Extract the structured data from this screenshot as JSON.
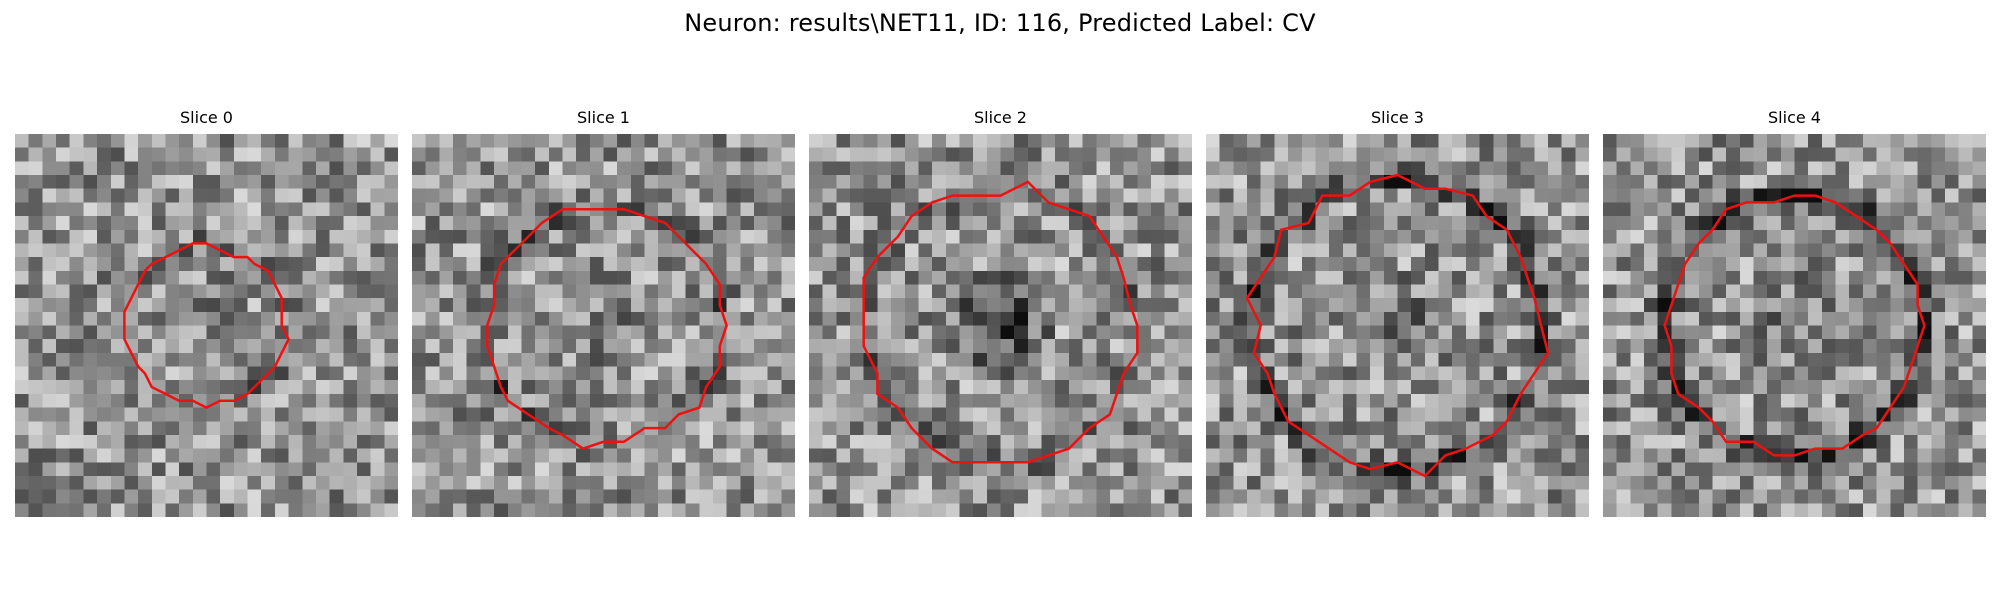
{
  "figure": {
    "title": "Neuron: results\\NET11, ID: 116, Predicted Label: CV",
    "contour_color": "#ee1111",
    "colormap": "gray",
    "panels": [
      {
        "title": "Slice 0",
        "contour_radius_fraction": 0.21,
        "dark_center": 0.05,
        "dark_ring": 0.1
      },
      {
        "title": "Slice 1",
        "contour_radius_fraction": 0.31,
        "dark_center": 0.08,
        "dark_ring": 0.14
      },
      {
        "title": "Slice 2",
        "contour_radius_fraction": 0.36,
        "dark_center": 0.3,
        "dark_ring": 0.12
      },
      {
        "title": "Slice 3",
        "contour_radius_fraction": 0.38,
        "dark_center": 0.1,
        "dark_ring": 0.22
      },
      {
        "title": "Slice 4",
        "contour_radius_fraction": 0.34,
        "dark_center": 0.12,
        "dark_ring": 0.25
      }
    ]
  }
}
